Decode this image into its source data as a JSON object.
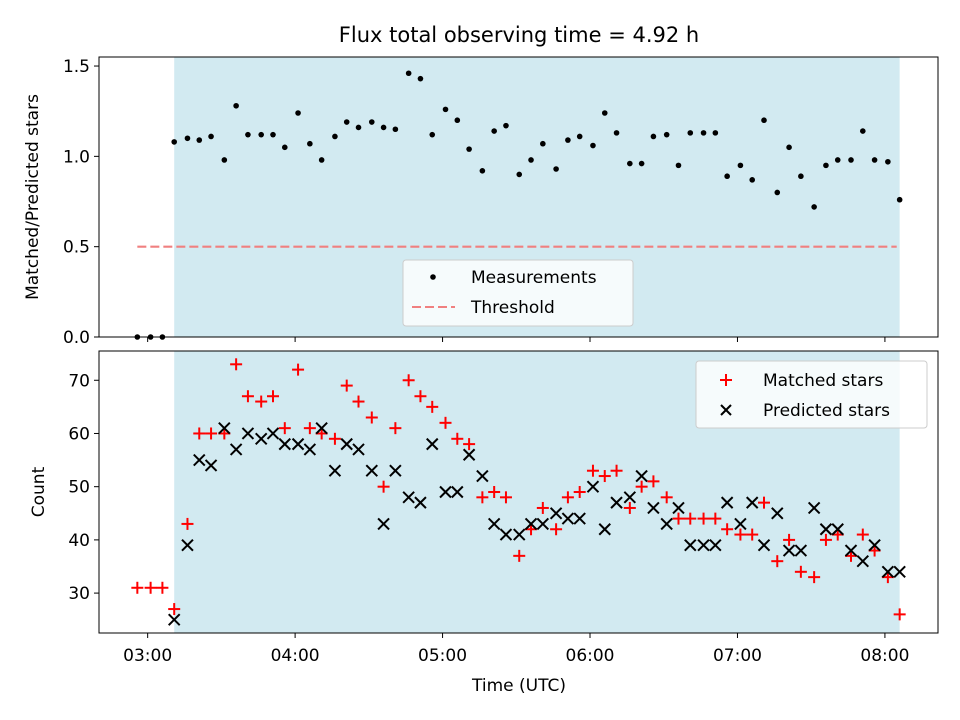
{
  "figure": {
    "title": "Flux total observing time = 4.92 h",
    "colors": {
      "shade": "#add8e6",
      "points": "#000000",
      "threshold": "#f08080",
      "matched": "#ff0000",
      "predicted": "#000000"
    }
  },
  "chart_data": [
    {
      "type": "scatter",
      "name": "top",
      "ylabel": "Matched/Predicted stars",
      "xlabel": "",
      "ylim": [
        0,
        1.55
      ],
      "yticks": [
        "0.0",
        "0.5",
        "1.0",
        "1.5"
      ],
      "ytick_values": [
        0,
        0.5,
        1.0,
        1.5
      ],
      "shaded_x_range": [
        3.18,
        8.1
      ],
      "legend_position": "lower center",
      "legend": [
        "Measurements",
        "Threshold"
      ],
      "threshold": {
        "label": "Threshold",
        "value": 0.5,
        "x_range": [
          2.93,
          8.08
        ],
        "style": "dashed"
      },
      "series": [
        {
          "name": "Measurements",
          "x": [
            2.93,
            3.02,
            3.1,
            3.18,
            3.27,
            3.35,
            3.43,
            3.52,
            3.6,
            3.68,
            3.77,
            3.85,
            3.93,
            4.02,
            4.1,
            4.18,
            4.27,
            4.35,
            4.43,
            4.52,
            4.6,
            4.68,
            4.77,
            4.85,
            4.93,
            5.02,
            5.1,
            5.18,
            5.27,
            5.35,
            5.43,
            5.52,
            5.6,
            5.68,
            5.77,
            5.85,
            5.93,
            6.02,
            6.1,
            6.18,
            6.27,
            6.35,
            6.43,
            6.52,
            6.6,
            6.68,
            6.77,
            6.85,
            6.93,
            7.02,
            7.1,
            7.18,
            7.27,
            7.35,
            7.43,
            7.52,
            7.6,
            7.68,
            7.77,
            7.85,
            7.93,
            8.02,
            8.1
          ],
          "y": [
            0,
            0,
            0,
            1.08,
            1.1,
            1.09,
            1.11,
            0.98,
            1.28,
            1.12,
            1.12,
            1.12,
            1.05,
            1.24,
            1.07,
            0.98,
            1.11,
            1.19,
            1.16,
            1.19,
            1.16,
            1.15,
            1.46,
            1.43,
            1.12,
            1.26,
            1.2,
            1.04,
            0.92,
            1.14,
            1.17,
            0.9,
            0.98,
            1.07,
            0.93,
            1.09,
            1.11,
            1.06,
            1.24,
            1.13,
            0.96,
            0.96,
            1.11,
            1.12,
            0.95,
            1.13,
            1.13,
            1.13,
            0.89,
            0.95,
            0.87,
            1.2,
            0.8,
            1.05,
            0.89,
            0.72,
            0.95,
            0.98,
            0.98,
            1.14,
            0.98,
            0.97,
            0.76
          ]
        }
      ]
    },
    {
      "type": "scatter",
      "name": "bottom",
      "ylabel": "Count",
      "xlabel": "Time (UTC)",
      "ylim": [
        22.5,
        75.5
      ],
      "xlim": [
        2.67,
        8.36
      ],
      "yticks": [
        "30",
        "40",
        "50",
        "60",
        "70"
      ],
      "ytick_values": [
        30,
        40,
        50,
        60,
        70
      ],
      "xticks": [
        "03:00",
        "04:00",
        "05:00",
        "06:00",
        "07:00",
        "08:00"
      ],
      "xtick_values": [
        3,
        4,
        5,
        6,
        7,
        8
      ],
      "shaded_x_range": [
        3.18,
        8.1
      ],
      "legend_position": "upper right",
      "legend": [
        "Matched stars",
        "Predicted stars"
      ],
      "series": [
        {
          "name": "Matched stars",
          "marker": "+",
          "x": [
            2.93,
            3.02,
            3.1,
            3.18,
            3.27,
            3.35,
            3.43,
            3.52,
            3.6,
            3.68,
            3.77,
            3.85,
            3.93,
            4.02,
            4.1,
            4.18,
            4.27,
            4.35,
            4.43,
            4.52,
            4.6,
            4.68,
            4.77,
            4.85,
            4.93,
            5.02,
            5.1,
            5.18,
            5.27,
            5.35,
            5.43,
            5.52,
            5.6,
            5.68,
            5.77,
            5.85,
            5.93,
            6.02,
            6.1,
            6.18,
            6.27,
            6.35,
            6.43,
            6.52,
            6.6,
            6.68,
            6.77,
            6.85,
            6.93,
            7.02,
            7.1,
            7.18,
            7.27,
            7.35,
            7.43,
            7.52,
            7.6,
            7.68,
            7.77,
            7.85,
            7.93,
            8.02,
            8.1
          ],
          "y": [
            31,
            31,
            31,
            27,
            43,
            60,
            60,
            60,
            73,
            67,
            66,
            67,
            61,
            72,
            61,
            60,
            59,
            69,
            66,
            63,
            50,
            61,
            70,
            67,
            65,
            62,
            59,
            58,
            48,
            49,
            48,
            37,
            42,
            46,
            42,
            48,
            49,
            53,
            52,
            53,
            46,
            50,
            51,
            48,
            44,
            44,
            44,
            44,
            42,
            41,
            41,
            47,
            36,
            40,
            34,
            33,
            40,
            41,
            37,
            41,
            38,
            33,
            26
          ]
        },
        {
          "name": "Predicted stars",
          "marker": "x",
          "x": [
            3.18,
            3.27,
            3.35,
            3.43,
            3.52,
            3.6,
            3.68,
            3.77,
            3.85,
            3.93,
            4.02,
            4.1,
            4.18,
            4.27,
            4.35,
            4.43,
            4.52,
            4.6,
            4.68,
            4.77,
            4.85,
            4.93,
            5.02,
            5.1,
            5.18,
            5.27,
            5.35,
            5.43,
            5.52,
            5.6,
            5.68,
            5.77,
            5.85,
            5.93,
            6.02,
            6.1,
            6.18,
            6.27,
            6.35,
            6.43,
            6.52,
            6.6,
            6.68,
            6.77,
            6.85,
            6.93,
            7.02,
            7.1,
            7.18,
            7.27,
            7.35,
            7.43,
            7.52,
            7.6,
            7.68,
            7.77,
            7.85,
            7.93,
            8.02,
            8.1
          ],
          "y": [
            25,
            39,
            55,
            54,
            61,
            57,
            60,
            59,
            60,
            58,
            58,
            57,
            61,
            53,
            58,
            57,
            53,
            43,
            53,
            48,
            47,
            58,
            49,
            49,
            56,
            52,
            43,
            41,
            41,
            43,
            43,
            45,
            44,
            44,
            50,
            42,
            47,
            48,
            52,
            46,
            43,
            46,
            39,
            39,
            39,
            47,
            43,
            47,
            39,
            45,
            38,
            38,
            46,
            42,
            42,
            38,
            36,
            39,
            34,
            34
          ]
        }
      ]
    }
  ]
}
